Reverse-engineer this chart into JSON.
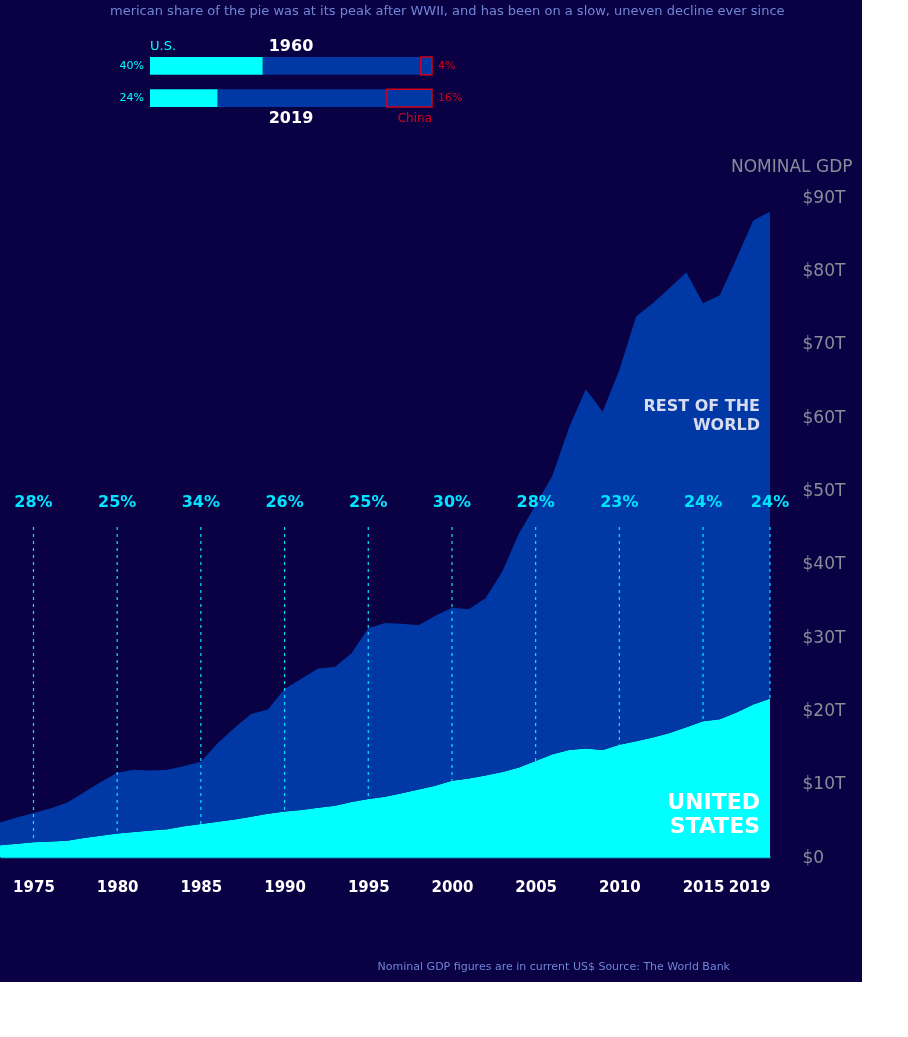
{
  "chart_data": [
    {
      "type": "bar",
      "orientation": "horizontal",
      "stacked": true,
      "subtitle": "merican share of the pie was at its peak after WWII, and has been on a slow, uneven decline ever since",
      "categories": [
        "1960",
        "2019"
      ],
      "xlim": [
        0,
        100
      ],
      "tick_labels": false,
      "series": [
        {
          "name": "U.S.",
          "color": "#00ffff",
          "values": [
            40,
            24
          ],
          "value_labels": [
            "40%",
            "24%"
          ]
        },
        {
          "color": "#0039a6",
          "values": [
            56,
            60
          ]
        },
        {
          "name": "China",
          "color": "#d0021b",
          "values": [
            4,
            16
          ],
          "value_labels": [
            "4%",
            "16%"
          ]
        }
      ]
    },
    {
      "type": "area",
      "stacked": true,
      "ylabel": "NOMINAL GDP",
      "x": [
        1973,
        1974,
        1975,
        1976,
        1977,
        1978,
        1979,
        1980,
        1981,
        1982,
        1983,
        1984,
        1985,
        1986,
        1987,
        1988,
        1989,
        1990,
        1991,
        1992,
        1993,
        1994,
        1995,
        1996,
        1997,
        1998,
        1999,
        2000,
        2001,
        2002,
        2003,
        2004,
        2005,
        2006,
        2007,
        2008,
        2009,
        2010,
        2011,
        2012,
        2013,
        2014,
        2015,
        2016,
        2017,
        2018,
        2019
      ],
      "xlim": [
        1973,
        2019
      ],
      "xticks": [
        1975,
        1980,
        1985,
        1990,
        1995,
        2000,
        2005,
        2010,
        2015,
        2019
      ],
      "ylim": [
        0,
        90
      ],
      "yticks": [
        {
          "value": 0,
          "label": "$0"
        },
        {
          "value": 10,
          "label": "$10T"
        },
        {
          "value": 20,
          "label": "$20T"
        },
        {
          "value": 30,
          "label": "$30T"
        },
        {
          "value": 40,
          "label": "$40T"
        },
        {
          "value": 50,
          "label": "$50T"
        },
        {
          "value": 60,
          "label": "$60T"
        },
        {
          "value": 70,
          "label": "$70T"
        },
        {
          "value": 80,
          "label": "$80T"
        },
        {
          "value": 90,
          "label": "$90T"
        }
      ],
      "series": [
        {
          "name": "UNITED\nSTATES",
          "color": "#00ffff",
          "values": [
            1.6,
            1.8,
            2.0,
            2.1,
            2.2,
            2.6,
            2.9,
            3.2,
            3.4,
            3.6,
            3.8,
            4.2,
            4.5,
            4.8,
            5.1,
            5.5,
            5.9,
            6.2,
            6.4,
            6.7,
            7.0,
            7.5,
            7.9,
            8.2,
            8.7,
            9.2,
            9.7,
            10.4,
            10.7,
            11.1,
            11.6,
            12.2,
            13.1,
            14.0,
            14.6,
            14.8,
            14.6,
            15.3,
            15.8,
            16.3,
            16.9,
            17.7,
            18.5,
            18.8,
            19.7,
            20.8,
            21.6
          ]
        },
        {
          "name": "REST OF THE\nWORLD",
          "color": "#0039a6",
          "values": [
            3.1,
            3.6,
            4.0,
            4.5,
            5.2,
            6.2,
            7.3,
            8.3,
            8.5,
            8.2,
            8.1,
            8.2,
            8.5,
            10.7,
            12.5,
            14.0,
            14.2,
            16.7,
            17.9,
            19.0,
            18.9,
            20.3,
            23.3,
            23.7,
            23.1,
            22.4,
            23.2,
            23.6,
            23.1,
            24.2,
            27.3,
            31.9,
            34.9,
            38.0,
            44.0,
            49.0,
            46.1,
            51.1,
            57.9,
            59.2,
            60.7,
            62.0,
            57.0,
            57.8,
            61.9,
            66.0,
            66.4
          ]
        }
      ],
      "annotations": [
        {
          "text": "28%",
          "x": 1975,
          "y": 2.0
        },
        {
          "text": "25%",
          "x": 1980,
          "y": 3.2
        },
        {
          "text": "34%",
          "x": 1985,
          "y": 4.5
        },
        {
          "text": "26%",
          "x": 1990,
          "y": 6.2
        },
        {
          "text": "25%",
          "x": 1995,
          "y": 7.9
        },
        {
          "text": "30%",
          "x": 2000,
          "y": 10.4
        },
        {
          "text": "28%",
          "x": 2005,
          "y": 13.1
        },
        {
          "text": "23%",
          "x": 2010,
          "y": 15.3
        },
        {
          "text": "24%",
          "x": 2015,
          "y": 18.5
        },
        {
          "text": "24%",
          "x": 2019,
          "y": 21.6
        },
        "Nominal GDP figures are in current US$",
        "Source: The World Bank"
      ]
    }
  ]
}
